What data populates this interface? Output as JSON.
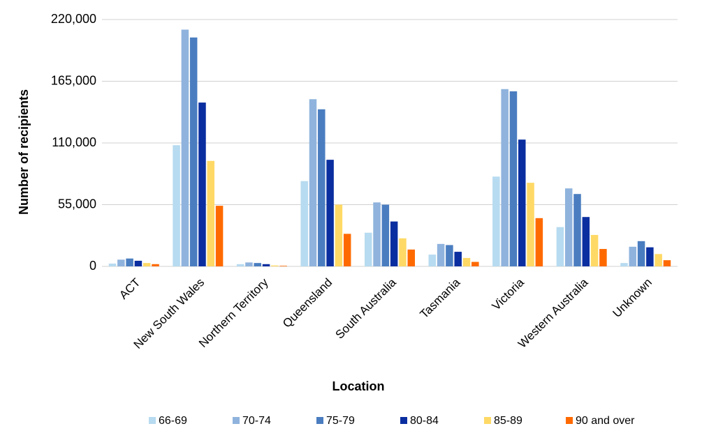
{
  "chart_data": {
    "type": "bar",
    "x_label": "Location",
    "y_label": "Number of recipients",
    "categories": [
      "ACT",
      "New South Wales",
      "Northern Territory",
      "Queensland",
      "South Australia",
      "Tasmania",
      "Victoria",
      "Western Australia",
      "Unknown"
    ],
    "series": [
      {
        "name": "66-69",
        "color": "#b7dbf0",
        "values": [
          2500,
          108000,
          2000,
          76000,
          30000,
          10500,
          80000,
          35000,
          3000
        ]
      },
      {
        "name": "70-74",
        "color": "#8fb3dd",
        "values": [
          6000,
          211000,
          3500,
          149000,
          57000,
          20000,
          158000,
          69500,
          17500
        ]
      },
      {
        "name": "75-79",
        "color": "#4a7dc0",
        "values": [
          7000,
          204000,
          3000,
          140000,
          55000,
          19000,
          156000,
          64500,
          22500
        ]
      },
      {
        "name": "80-84",
        "color": "#0a2ea0",
        "values": [
          5000,
          146000,
          2000,
          95000,
          40000,
          13000,
          113000,
          44000,
          17000
        ]
      },
      {
        "name": "85-89",
        "color": "#ffd966",
        "values": [
          3000,
          94000,
          800,
          55000,
          25000,
          7500,
          74500,
          28000,
          11000
        ]
      },
      {
        "name": "90 and over",
        "color": "#ff6a00",
        "values": [
          2000,
          54000,
          500,
          29000,
          15000,
          4000,
          43000,
          15500,
          5500
        ]
      }
    ],
    "ylim": [
      0,
      220000
    ],
    "yticks": [
      0,
      {
        "value": 55000,
        "label": "55,000"
      },
      {
        "value": 110000,
        "label": "110,000"
      },
      {
        "value": 165000,
        "label": "165,000"
      },
      {
        "value": 220000,
        "label": "220,000"
      }
    ],
    "grid": true,
    "legend": "bottom"
  }
}
